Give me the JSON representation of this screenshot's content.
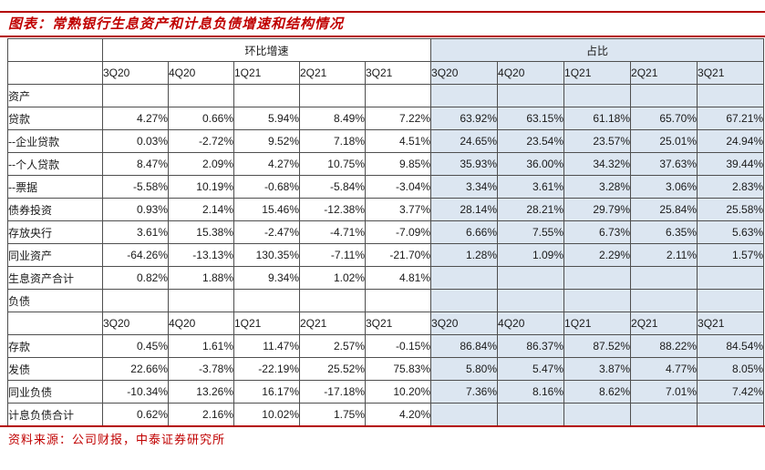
{
  "title": "图表：常熟银行生息资产和计息负债增速和结构情况",
  "source": "资料来源：公司财报，中泰证券研究所",
  "accent_color": "#c00000",
  "highlight_color": "#dce6f1",
  "table": {
    "group_headers": [
      "环比增速",
      "占比"
    ],
    "quarters": [
      "3Q20",
      "4Q20",
      "1Q21",
      "2Q21",
      "3Q21"
    ],
    "rows": [
      {
        "type": "section",
        "label": "资产"
      },
      {
        "type": "data",
        "label": "贷款",
        "growth": [
          "4.27%",
          "0.66%",
          "5.94%",
          "8.49%",
          "7.22%"
        ],
        "share": [
          "63.92%",
          "63.15%",
          "61.18%",
          "65.70%",
          "67.21%"
        ]
      },
      {
        "type": "data",
        "label": "--企业贷款",
        "growth": [
          "0.03%",
          "-2.72%",
          "9.52%",
          "7.18%",
          "4.51%"
        ],
        "share": [
          "24.65%",
          "23.54%",
          "23.57%",
          "25.01%",
          "24.94%"
        ]
      },
      {
        "type": "data",
        "label": "--个人贷款",
        "growth": [
          "8.47%",
          "2.09%",
          "4.27%",
          "10.75%",
          "9.85%"
        ],
        "share": [
          "35.93%",
          "36.00%",
          "34.32%",
          "37.63%",
          "39.44%"
        ]
      },
      {
        "type": "data",
        "label": "--票据",
        "growth": [
          "-5.58%",
          "10.19%",
          "-0.68%",
          "-5.84%",
          "-3.04%"
        ],
        "share": [
          "3.34%",
          "3.61%",
          "3.28%",
          "3.06%",
          "2.83%"
        ]
      },
      {
        "type": "data",
        "label": "债券投资",
        "growth": [
          "0.93%",
          "2.14%",
          "15.46%",
          "-12.38%",
          "3.77%"
        ],
        "share": [
          "28.14%",
          "28.21%",
          "29.79%",
          "25.84%",
          "25.58%"
        ]
      },
      {
        "type": "data",
        "label": "存放央行",
        "growth": [
          "3.61%",
          "15.38%",
          "-2.47%",
          "-4.71%",
          "-7.09%"
        ],
        "share": [
          "6.66%",
          "7.55%",
          "6.73%",
          "6.35%",
          "5.63%"
        ]
      },
      {
        "type": "data",
        "label": "同业资产",
        "growth": [
          "-64.26%",
          "-13.13%",
          "130.35%",
          "-7.11%",
          "-21.70%"
        ],
        "share": [
          "1.28%",
          "1.09%",
          "2.29%",
          "2.11%",
          "1.57%"
        ]
      },
      {
        "type": "data",
        "label": "生息资产合计",
        "growth": [
          "0.82%",
          "1.88%",
          "9.34%",
          "1.02%",
          "4.81%"
        ],
        "share": [
          "",
          "",
          "",
          "",
          ""
        ]
      },
      {
        "type": "section",
        "label": "负债"
      },
      {
        "type": "quarters"
      },
      {
        "type": "data",
        "label": "存款",
        "growth": [
          "0.45%",
          "1.61%",
          "11.47%",
          "2.57%",
          "-0.15%"
        ],
        "share": [
          "86.84%",
          "86.37%",
          "87.52%",
          "88.22%",
          "84.54%"
        ]
      },
      {
        "type": "data",
        "label": "发债",
        "growth": [
          "22.66%",
          "-3.78%",
          "-22.19%",
          "25.52%",
          "75.83%"
        ],
        "share": [
          "5.80%",
          "5.47%",
          "3.87%",
          "4.77%",
          "8.05%"
        ]
      },
      {
        "type": "data",
        "label": "同业负债",
        "growth": [
          "-10.34%",
          "13.26%",
          "16.17%",
          "-17.18%",
          "10.20%"
        ],
        "share": [
          "7.36%",
          "8.16%",
          "8.62%",
          "7.01%",
          "7.42%"
        ]
      },
      {
        "type": "data",
        "label": "计息负债合计",
        "growth": [
          "0.62%",
          "2.16%",
          "10.02%",
          "1.75%",
          "4.20%"
        ],
        "share": [
          "",
          "",
          "",
          "",
          ""
        ]
      }
    ]
  }
}
